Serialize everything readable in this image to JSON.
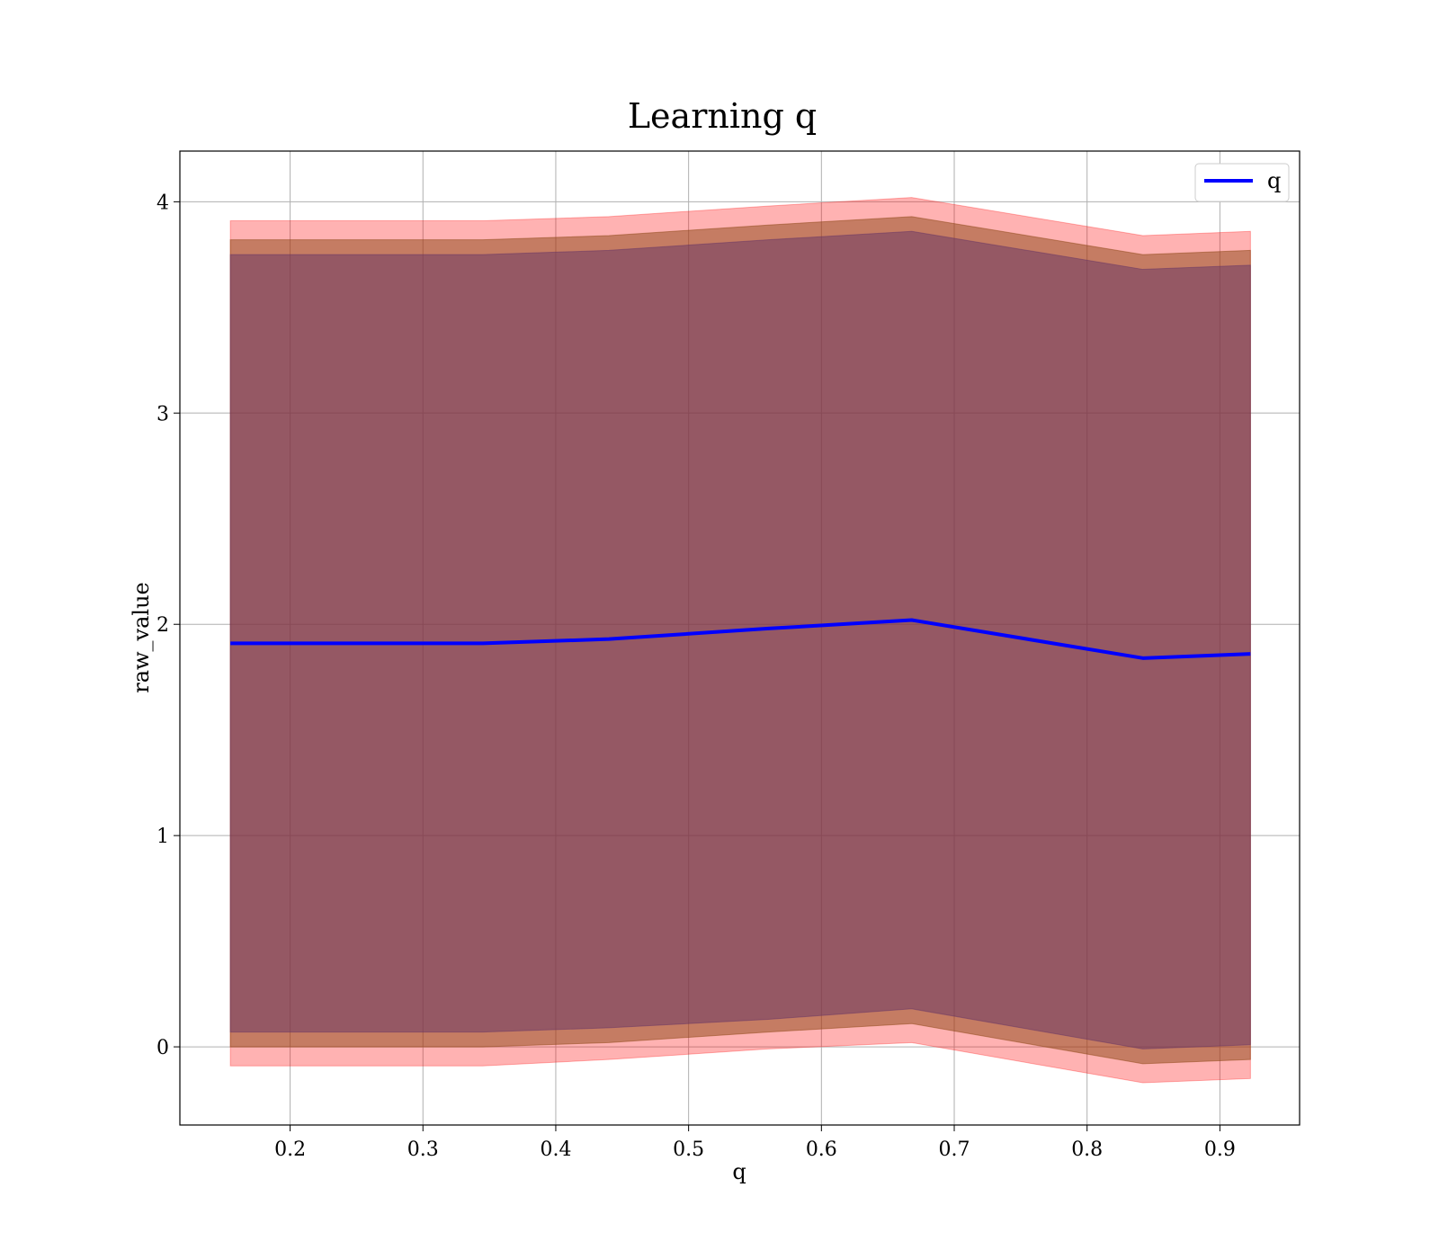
{
  "chart_data": {
    "type": "line",
    "title": "Learning q",
    "xlabel": "q",
    "ylabel": "raw_value",
    "xlim": [
      0.117,
      0.96
    ],
    "ylim": [
      -0.37,
      4.24
    ],
    "xticks": [
      0.2,
      0.3,
      0.4,
      0.5,
      0.6,
      0.7,
      0.8,
      0.9
    ],
    "xtick_labels": [
      "0.2",
      "0.3",
      "0.4",
      "0.5",
      "0.6",
      "0.7",
      "0.8",
      "0.9"
    ],
    "yticks": [
      0,
      1,
      2,
      3,
      4
    ],
    "ytick_labels": [
      "0",
      "1",
      "2",
      "3",
      "4"
    ],
    "grid": true,
    "legend_position": "top-right",
    "x": [
      0.155,
      0.345,
      0.44,
      0.56,
      0.668,
      0.842,
      0.923
    ],
    "series": [
      {
        "name": "q",
        "color": "#0000ff",
        "values": [
          1.91,
          1.91,
          1.93,
          1.98,
          2.02,
          1.84,
          1.86
        ]
      }
    ],
    "bands": [
      {
        "color": "#ff0000",
        "opacity": 0.3,
        "lower": [
          -0.09,
          -0.09,
          -0.06,
          -0.01,
          0.02,
          -0.17,
          -0.15
        ],
        "upper": [
          3.91,
          3.91,
          3.93,
          3.98,
          4.02,
          3.84,
          3.86
        ]
      },
      {
        "color": "#8b4513",
        "opacity": 0.5,
        "lower": [
          0.0,
          0.0,
          0.02,
          0.07,
          0.11,
          -0.08,
          -0.06
        ],
        "upper": [
          3.82,
          3.82,
          3.84,
          3.89,
          3.93,
          3.75,
          3.77
        ]
      },
      {
        "color": "#663366",
        "opacity": 0.5,
        "lower": [
          0.07,
          0.07,
          0.09,
          0.13,
          0.18,
          -0.01,
          0.01
        ],
        "upper": [
          3.75,
          3.75,
          3.77,
          3.82,
          3.86,
          3.68,
          3.7
        ]
      }
    ]
  }
}
